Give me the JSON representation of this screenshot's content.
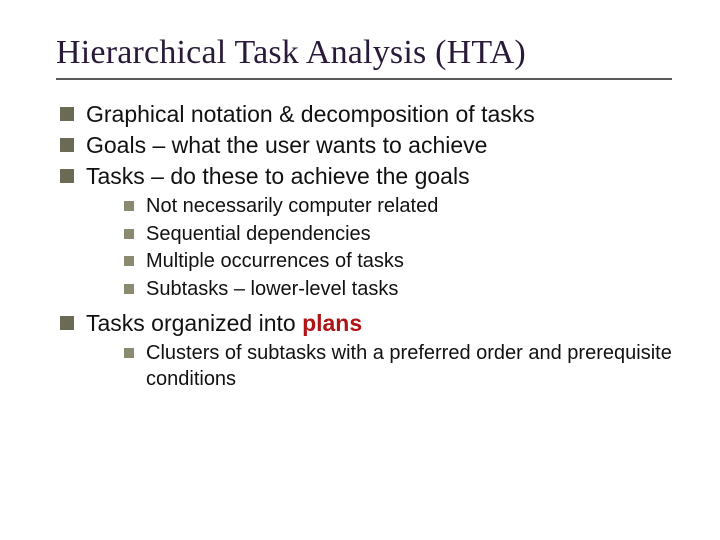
{
  "colors": {
    "title_color": "#2a1a3a",
    "rule_color": "#5a5a5a",
    "bullet_lvl1": "#6a6a55",
    "bullet_lvl2": "#8a8a70",
    "plans_color": "#b01515",
    "background": "#ffffff",
    "body_text": "#111111"
  },
  "typography": {
    "title_family": "Times New Roman",
    "title_size_pt": 26,
    "body_family": "Arial",
    "lvl1_size_pt": 17,
    "lvl2_size_pt": 15
  },
  "title": "Hierarchical Task Analysis (HTA)",
  "bullets": {
    "b1": "Graphical notation & decomposition of tasks",
    "b2": "Goals – what the user wants to achieve",
    "b3": "Tasks – do these to achieve the goals",
    "b3_sub": {
      "s1": "Not necessarily computer related",
      "s2": "Sequential dependencies",
      "s3": "Multiple occurrences of tasks",
      "s4": "Subtasks – lower-level tasks"
    },
    "b4_pre": "Tasks organized into ",
    "b4_word": "plans",
    "b4_sub": {
      "s1": "Clusters of subtasks with a preferred order and prerequisite conditions"
    }
  }
}
